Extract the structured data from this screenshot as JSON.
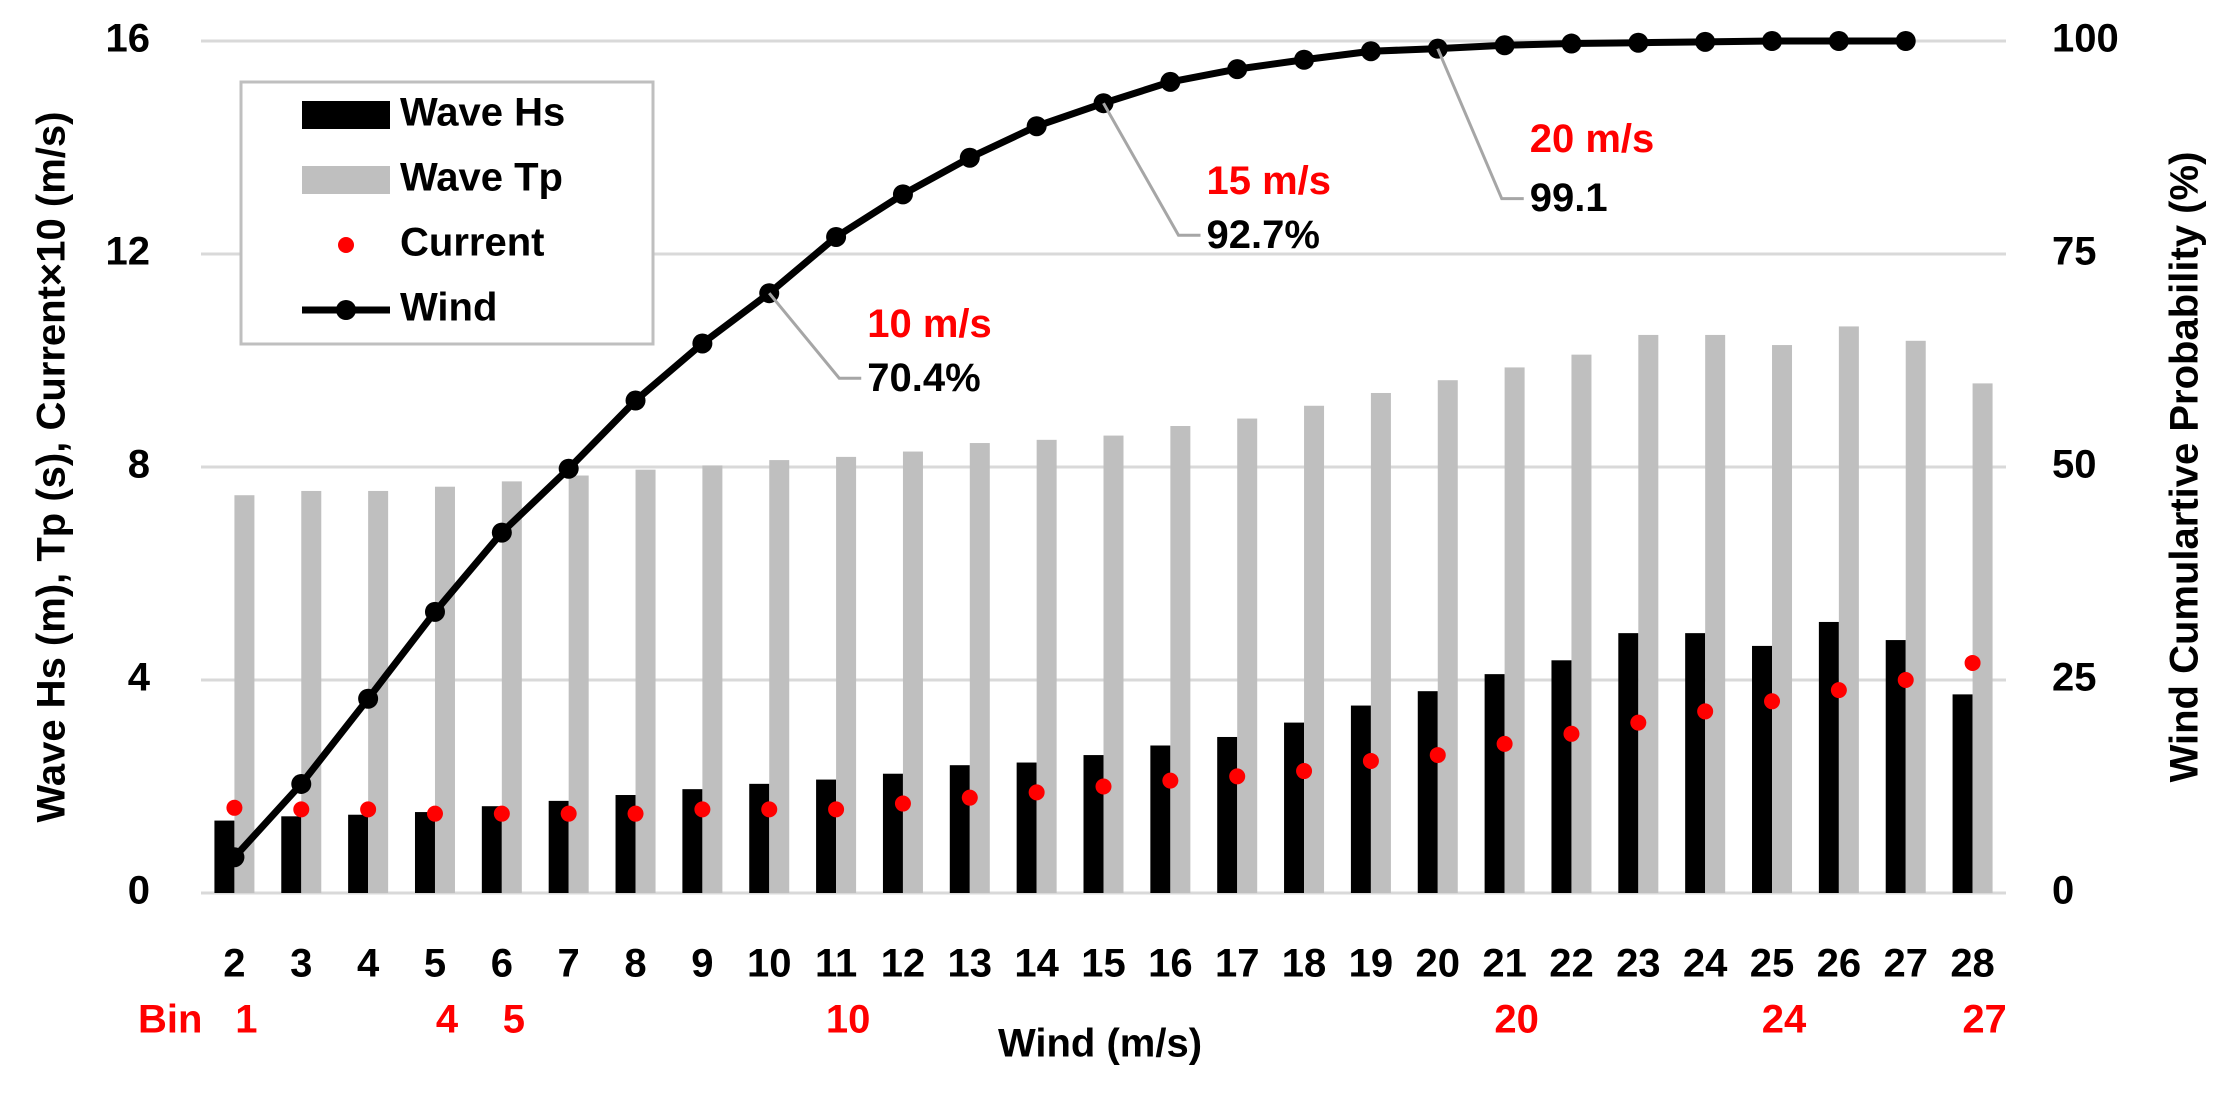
{
  "chart_data": {
    "type": "bar",
    "categories": [
      2,
      3,
      4,
      5,
      6,
      7,
      8,
      9,
      10,
      11,
      12,
      13,
      14,
      15,
      16,
      17,
      18,
      19,
      20,
      21,
      22,
      23,
      24,
      25,
      26,
      27,
      28
    ],
    "bin_title": "Bin",
    "bin_labels": [
      "1",
      null,
      null,
      "4",
      "5",
      null,
      null,
      null,
      null,
      "10",
      null,
      null,
      null,
      null,
      null,
      null,
      null,
      null,
      null,
      "20",
      null,
      null,
      null,
      "24",
      null,
      null,
      "27"
    ],
    "xlabel": "Wind (m/s)",
    "ylabel": "Wave Hs (m), Tp (s), Current×10 (m/s)",
    "y2label": "Wind Cumulartive Probability (%)",
    "ylim": [
      0,
      16
    ],
    "yticks": [
      0,
      4,
      8,
      12,
      16
    ],
    "y2lim": [
      0,
      100
    ],
    "y2ticks": [
      0,
      25,
      50,
      75,
      100
    ],
    "grid": true,
    "legend": "upper left",
    "series": [
      {
        "name": "Wave Hs",
        "type": "bar",
        "color": "#000000",
        "values": [
          1.36,
          1.44,
          1.47,
          1.52,
          1.63,
          1.73,
          1.84,
          1.95,
          2.05,
          2.13,
          2.24,
          2.4,
          2.45,
          2.59,
          2.77,
          2.93,
          3.2,
          3.52,
          3.79,
          4.11,
          4.37,
          4.88,
          4.88,
          4.64,
          5.09,
          4.75,
          3.73
        ]
      },
      {
        "name": "Wave Tp",
        "type": "bar",
        "color": "#bfbfbf",
        "values": [
          7.47,
          7.55,
          7.55,
          7.63,
          7.73,
          7.84,
          7.95,
          8.03,
          8.13,
          8.19,
          8.29,
          8.45,
          8.51,
          8.59,
          8.77,
          8.91,
          9.15,
          9.39,
          9.63,
          9.87,
          10.11,
          10.48,
          10.48,
          10.29,
          10.64,
          10.37,
          9.57
        ]
      },
      {
        "name": "Current",
        "type": "scatter",
        "color": "#ff0000",
        "values": [
          1.6,
          1.57,
          1.57,
          1.49,
          1.49,
          1.49,
          1.49,
          1.57,
          1.57,
          1.57,
          1.68,
          1.79,
          1.89,
          2.0,
          2.11,
          2.19,
          2.29,
          2.48,
          2.59,
          2.8,
          2.99,
          3.2,
          3.41,
          3.6,
          3.81,
          4.0,
          4.32
        ]
      },
      {
        "name": "Wind",
        "type": "line",
        "color": "#000000",
        "axis": "y2",
        "values": [
          4.2,
          12.8,
          22.8,
          33,
          42.3,
          49.8,
          57.8,
          64.5,
          70.4,
          77,
          82,
          86.3,
          90,
          92.7,
          95.2,
          96.7,
          97.8,
          98.8,
          99.1,
          99.5,
          99.7,
          99.8,
          99.9,
          100,
          100,
          100,
          null
        ]
      }
    ],
    "annotations": [
      {
        "x": 10,
        "title": "10 m/s",
        "text": "70.4%"
      },
      {
        "x": 15,
        "title": "15 m/s",
        "text": "92.7%"
      },
      {
        "x": 20,
        "title": "20 m/s",
        "text": "99.1"
      }
    ]
  }
}
